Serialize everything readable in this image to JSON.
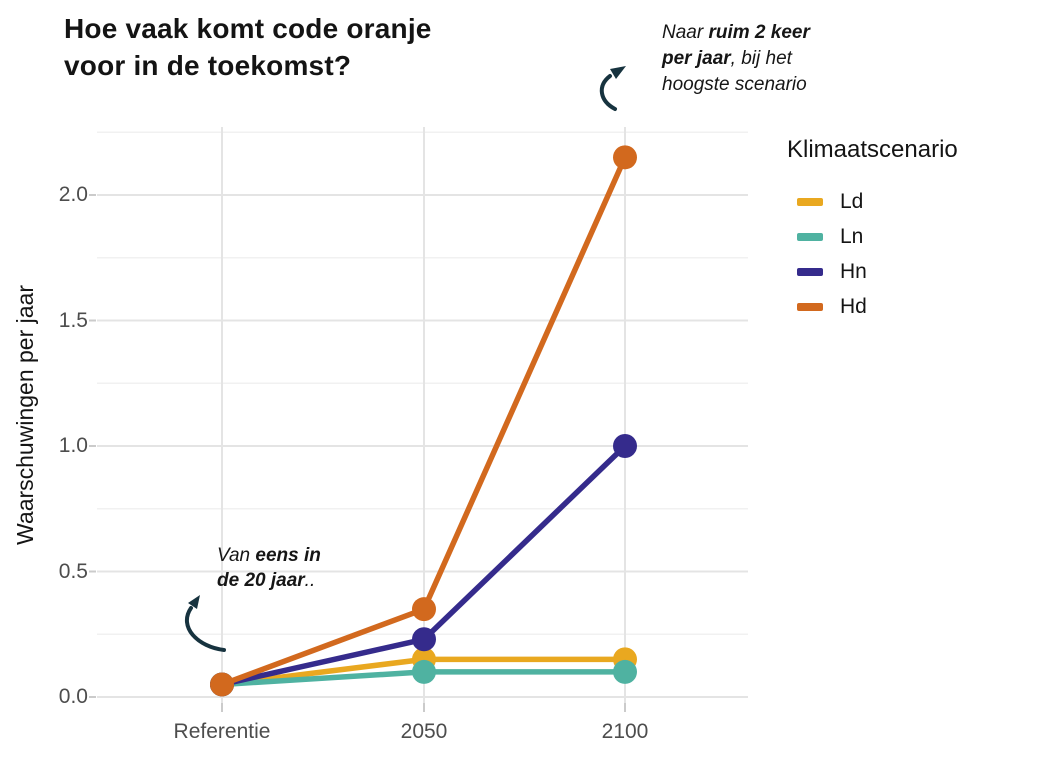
{
  "title": {
    "line1": "Hoe vaak komt code oranje",
    "line2": "voor in de toekomst?"
  },
  "axes": {
    "y_title": "Waarschuwingen per jaar",
    "y_tick_labels": [
      "2.0",
      "1.5",
      "1.0",
      "0.5",
      "0.0"
    ],
    "x_tick_labels": [
      "Referentie",
      "2050",
      "2100"
    ]
  },
  "legend": {
    "title": "Klimaatscenario",
    "items": [
      {
        "label": "Ld",
        "color": "#E9A820"
      },
      {
        "label": "Ln",
        "color": "#4FB2A1"
      },
      {
        "label": "Hn",
        "color": "#352B8C"
      },
      {
        "label": "Hd",
        "color": "#D2691E"
      }
    ]
  },
  "annotations": {
    "right": {
      "line1_pre": "Naar ",
      "line1_bold": "ruim 2 keer",
      "line2_bold": "per jaar",
      "line2_post": ", bij het",
      "line3": "hoogste scenario"
    },
    "left": {
      "line1_pre": "Van ",
      "line1_bold": "eens in",
      "line2_bold": "de 20 jaar",
      "line2_post": ".."
    }
  },
  "chart_data": {
    "type": "line",
    "title": "Hoe vaak komt code oranje voor in de toekomst?",
    "xlabel": "",
    "ylabel": "Waarschuwingen per jaar",
    "categories": [
      "Referentie",
      "2050",
      "2100"
    ],
    "series": [
      {
        "name": "Ld",
        "color": "#E9A820",
        "values": [
          0.05,
          0.15,
          0.15
        ]
      },
      {
        "name": "Ln",
        "color": "#4FB2A1",
        "values": [
          0.05,
          0.1,
          0.1
        ]
      },
      {
        "name": "Hn",
        "color": "#352B8C",
        "values": [
          0.05,
          0.23,
          1.0
        ]
      },
      {
        "name": "Hd",
        "color": "#D2691E",
        "values": [
          0.05,
          0.35,
          2.15
        ]
      }
    ],
    "ylim": [
      0,
      2.25
    ],
    "yticks": [
      0.0,
      0.5,
      1.0,
      1.5,
      2.0
    ],
    "grid": "major+minor",
    "legend_title": "Klimaatscenario",
    "legend_position": "right",
    "annotation_high": "Naar ruim 2 keer per jaar, bij het hoogste scenario",
    "annotation_low": "Van eens in de 20 jaar.."
  },
  "colors": {
    "arrow": "#17333F",
    "grid_major": "#E4E4E4",
    "grid_minor": "#F1F1F1",
    "axis_tick": "#CBCBCB",
    "tick_text": "#4D4D4D"
  }
}
